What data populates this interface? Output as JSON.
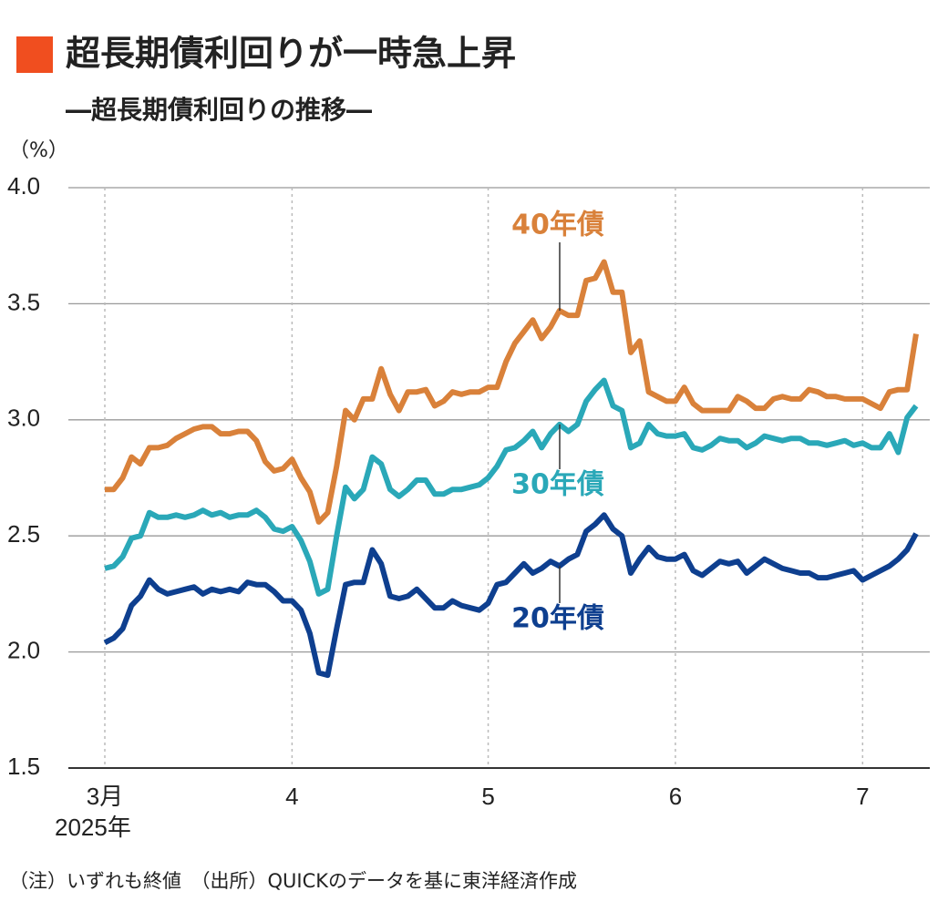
{
  "chart_data": {
    "type": "line",
    "title": "超長期債利回りが一時急上昇",
    "subtitle": "―超長期債利回りの推移―",
    "ylabel": "（%）",
    "year_label": "2025年",
    "note": "（注）いずれも終値　（出所）QUICKのデータを基に東洋経済作成",
    "categories": [
      "3月",
      null,
      null,
      null,
      null,
      null,
      null,
      null,
      null,
      null,
      null,
      null,
      null,
      null,
      null,
      null,
      null,
      null,
      null,
      null,
      null,
      "4",
      null,
      null,
      null,
      null,
      null,
      null,
      null,
      null,
      null,
      null,
      null,
      null,
      null,
      null,
      null,
      null,
      null,
      null,
      null,
      null,
      null,
      "5",
      null,
      null,
      null,
      null,
      null,
      null,
      null,
      null,
      null,
      null,
      null,
      null,
      null,
      null,
      null,
      null,
      null,
      null,
      null,
      null,
      "6",
      null,
      null,
      null,
      null,
      null,
      null,
      null,
      null,
      null,
      null,
      null,
      null,
      null,
      null,
      null,
      null,
      null,
      null,
      null,
      null,
      "7",
      null,
      null,
      null,
      null,
      null,
      null
    ],
    "ylim": [
      1.5,
      4.0
    ],
    "yticks": [
      1.5,
      {
        "value": 2,
        "label": "2.0"
      },
      2.5,
      {
        "value": 3,
        "label": "3.0"
      },
      3.5,
      {
        "value": 4,
        "label": "4.0"
      }
    ],
    "grid": true,
    "series": [
      {
        "name": "40年債",
        "color": "#d9813a",
        "values": [
          2.7,
          2.7,
          2.75,
          2.84,
          2.81,
          2.88,
          2.88,
          2.89,
          2.92,
          2.94,
          2.96,
          2.97,
          2.97,
          2.94,
          2.94,
          2.95,
          2.95,
          2.91,
          2.82,
          2.78,
          2.79,
          2.83,
          2.75,
          2.69,
          2.56,
          2.6,
          2.8,
          3.04,
          3.0,
          3.09,
          3.09,
          3.22,
          3.11,
          3.04,
          3.12,
          3.12,
          3.13,
          3.06,
          3.08,
          3.12,
          3.11,
          3.12,
          3.12,
          3.14,
          3.14,
          3.25,
          3.33,
          3.38,
          3.43,
          3.35,
          3.4,
          3.47,
          3.45,
          3.45,
          3.6,
          3.61,
          3.68,
          3.55,
          3.55,
          3.29,
          3.34,
          3.12,
          3.1,
          3.08,
          3.08,
          3.14,
          3.07,
          3.04,
          3.04,
          3.04,
          3.04,
          3.1,
          3.08,
          3.05,
          3.05,
          3.09,
          3.1,
          3.09,
          3.09,
          3.13,
          3.12,
          3.1,
          3.1,
          3.09,
          3.09,
          3.09,
          3.07,
          3.05,
          3.12,
          3.13,
          3.13,
          3.37
        ]
      },
      {
        "name": "30年債",
        "color": "#2aa8b8",
        "values": [
          2.36,
          2.37,
          2.41,
          2.49,
          2.5,
          2.6,
          2.58,
          2.58,
          2.59,
          2.58,
          2.59,
          2.61,
          2.59,
          2.6,
          2.58,
          2.59,
          2.59,
          2.61,
          2.58,
          2.53,
          2.52,
          2.54,
          2.48,
          2.39,
          2.25,
          2.27,
          2.5,
          2.71,
          2.66,
          2.7,
          2.84,
          2.81,
          2.7,
          2.67,
          2.7,
          2.74,
          2.74,
          2.68,
          2.68,
          2.7,
          2.7,
          2.71,
          2.72,
          2.75,
          2.8,
          2.87,
          2.88,
          2.91,
          2.95,
          2.88,
          2.94,
          2.98,
          2.95,
          2.98,
          3.08,
          3.13,
          3.17,
          3.06,
          3.04,
          2.88,
          2.9,
          2.98,
          2.94,
          2.93,
          2.93,
          2.94,
          2.88,
          2.87,
          2.89,
          2.92,
          2.91,
          2.91,
          2.88,
          2.9,
          2.93,
          2.92,
          2.91,
          2.92,
          2.92,
          2.9,
          2.9,
          2.89,
          2.9,
          2.91,
          2.89,
          2.9,
          2.88,
          2.88,
          2.94,
          2.86,
          3.01,
          3.06
        ]
      },
      {
        "name": "20年債",
        "color": "#0e3f8f",
        "values": [
          2.04,
          2.06,
          2.1,
          2.2,
          2.24,
          2.31,
          2.27,
          2.25,
          2.26,
          2.27,
          2.28,
          2.25,
          2.27,
          2.26,
          2.27,
          2.26,
          2.3,
          2.29,
          2.29,
          2.26,
          2.22,
          2.22,
          2.18,
          2.08,
          1.91,
          1.9,
          2.1,
          2.29,
          2.3,
          2.3,
          2.44,
          2.38,
          2.24,
          2.23,
          2.24,
          2.27,
          2.23,
          2.19,
          2.19,
          2.22,
          2.2,
          2.19,
          2.18,
          2.21,
          2.29,
          2.3,
          2.34,
          2.38,
          2.34,
          2.36,
          2.39,
          2.37,
          2.4,
          2.42,
          2.52,
          2.55,
          2.59,
          2.53,
          2.5,
          2.34,
          2.4,
          2.45,
          2.41,
          2.4,
          2.4,
          2.42,
          2.35,
          2.33,
          2.36,
          2.39,
          2.38,
          2.39,
          2.34,
          2.37,
          2.4,
          2.38,
          2.36,
          2.35,
          2.34,
          2.34,
          2.32,
          2.32,
          2.33,
          2.34,
          2.35,
          2.31,
          2.33,
          2.35,
          2.37,
          2.4,
          2.44,
          2.51
        ]
      }
    ]
  }
}
